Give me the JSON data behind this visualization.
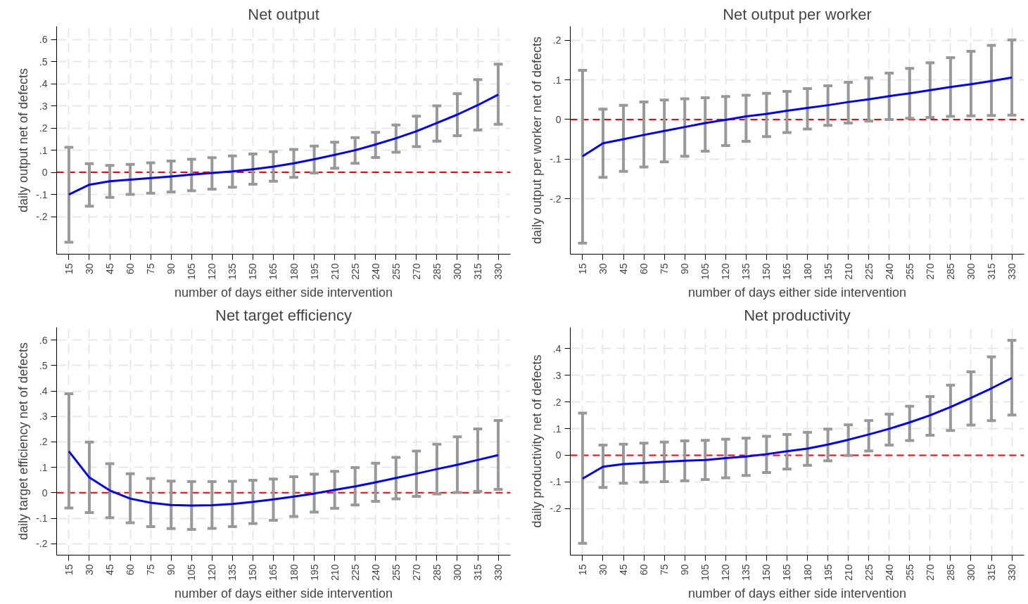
{
  "chart_data": [
    {
      "type": "line",
      "title": "Net output",
      "xlabel": "number of days either side intervention",
      "ylabel": "daily output net of defects",
      "categories": [
        "15",
        "30",
        "45",
        "60",
        "75",
        "90",
        "105",
        "120",
        "135",
        "150",
        "165",
        "180",
        "195",
        "210",
        "225",
        "240",
        "255",
        "270",
        "285",
        "300",
        "315",
        "330"
      ],
      "series": [
        {
          "color": "#0000ff",
          "values": [
            -0.1,
            -0.056,
            -0.04,
            -0.033,
            -0.026,
            -0.019,
            -0.01,
            -0.003,
            0.004,
            0.014,
            0.026,
            0.041,
            0.059,
            0.079,
            0.1,
            0.126,
            0.154,
            0.186,
            0.223,
            0.261,
            0.304,
            0.351
          ],
          "errors": [
            [
              -0.316,
              0.113
            ],
            [
              -0.153,
              0.039
            ],
            [
              -0.113,
              0.031
            ],
            [
              -0.1,
              0.036
            ],
            [
              -0.094,
              0.043
            ],
            [
              -0.089,
              0.051
            ],
            [
              -0.083,
              0.059
            ],
            [
              -0.076,
              0.066
            ],
            [
              -0.067,
              0.074
            ],
            [
              -0.054,
              0.083
            ],
            [
              -0.04,
              0.093
            ],
            [
              -0.023,
              0.104
            ],
            [
              -0.003,
              0.119
            ],
            [
              0.019,
              0.136
            ],
            [
              0.041,
              0.157
            ],
            [
              0.067,
              0.181
            ],
            [
              0.091,
              0.214
            ],
            [
              0.116,
              0.254
            ],
            [
              0.141,
              0.301
            ],
            [
              0.166,
              0.356
            ],
            [
              0.191,
              0.419
            ],
            [
              0.217,
              0.489
            ]
          ]
        }
      ],
      "ylim": [
        -0.37,
        0.66
      ],
      "yticks": [
        {
          "value": -0.2,
          "label": "-.2"
        },
        {
          "value": -0.1,
          "label": "-.1"
        },
        0,
        {
          "value": 0.1,
          "label": ".1"
        },
        {
          "value": 0.2,
          "label": ".2"
        },
        {
          "value": 0.3,
          "label": ".3"
        },
        {
          "value": 0.4,
          "label": ".4"
        },
        {
          "value": 0.5,
          "label": ".5"
        },
        {
          "value": 0.6,
          "label": ".6"
        }
      ],
      "ref_lines": [
        {
          "axis": "y",
          "value": 0,
          "color": "#ff0000",
          "line_style": "dashed"
        }
      ],
      "grid": true,
      "marker": "none",
      "line_style": "solid"
    },
    {
      "type": "line",
      "title": "Net output per worker",
      "xlabel": "number of days either side intervention",
      "ylabel": "daily output per worker net of defects",
      "categories": [
        "15",
        "30",
        "45",
        "60",
        "75",
        "90",
        "105",
        "120",
        "135",
        "150",
        "165",
        "180",
        "195",
        "210",
        "225",
        "240",
        "255",
        "270",
        "285",
        "300",
        "315",
        "330"
      ],
      "series": [
        {
          "color": "#0000ff",
          "values": [
            -0.093,
            -0.06,
            -0.05,
            -0.039,
            -0.029,
            -0.019,
            -0.009,
            -0.001,
            0.008,
            0.014,
            0.022,
            0.029,
            0.036,
            0.044,
            0.051,
            0.059,
            0.066,
            0.074,
            0.082,
            0.089,
            0.097,
            0.106
          ],
          "errors": [
            [
              -0.312,
              0.124
            ],
            [
              -0.146,
              0.026
            ],
            [
              -0.131,
              0.036
            ],
            [
              -0.12,
              0.044
            ],
            [
              -0.107,
              0.049
            ],
            [
              -0.093,
              0.052
            ],
            [
              -0.08,
              0.055
            ],
            [
              -0.066,
              0.058
            ],
            [
              -0.055,
              0.061
            ],
            [
              -0.043,
              0.066
            ],
            [
              -0.033,
              0.071
            ],
            [
              -0.024,
              0.078
            ],
            [
              -0.015,
              0.085
            ],
            [
              -0.009,
              0.094
            ],
            [
              -0.004,
              0.105
            ],
            [
              0.0,
              0.117
            ],
            [
              0.003,
              0.129
            ],
            [
              0.005,
              0.143
            ],
            [
              0.008,
              0.156
            ],
            [
              0.009,
              0.172
            ],
            [
              0.01,
              0.187
            ],
            [
              0.011,
              0.201
            ]
          ]
        }
      ],
      "ylim": [
        -0.34,
        0.235
      ],
      "yticks": [
        {
          "value": -0.2,
          "label": "-.2"
        },
        {
          "value": -0.1,
          "label": "-.1"
        },
        0,
        {
          "value": 0.1,
          "label": ".1"
        },
        {
          "value": 0.2,
          "label": ".2"
        }
      ],
      "ref_lines": [
        {
          "axis": "y",
          "value": 0,
          "color": "#ff0000",
          "line_style": "dashed"
        }
      ],
      "grid": true,
      "marker": "none",
      "line_style": "solid"
    },
    {
      "type": "line",
      "title": "Net target efficiency",
      "xlabel": "number of days either side intervention",
      "ylabel": "daily target efficiency net of defects",
      "categories": [
        "15",
        "30",
        "45",
        "60",
        "75",
        "90",
        "105",
        "120",
        "135",
        "150",
        "165",
        "180",
        "195",
        "210",
        "225",
        "240",
        "255",
        "270",
        "285",
        "300",
        "315",
        "330"
      ],
      "series": [
        {
          "color": "#0000ff",
          "values": [
            0.163,
            0.06,
            0.009,
            -0.023,
            -0.039,
            -0.048,
            -0.05,
            -0.049,
            -0.044,
            -0.036,
            -0.026,
            -0.015,
            -0.003,
            0.011,
            0.025,
            0.041,
            0.058,
            0.075,
            0.093,
            0.11,
            0.129,
            0.148
          ],
          "errors": [
            [
              -0.06,
              0.389
            ],
            [
              -0.078,
              0.199
            ],
            [
              -0.098,
              0.114
            ],
            [
              -0.118,
              0.075
            ],
            [
              -0.133,
              0.056
            ],
            [
              -0.141,
              0.046
            ],
            [
              -0.144,
              0.044
            ],
            [
              -0.14,
              0.044
            ],
            [
              -0.133,
              0.045
            ],
            [
              -0.121,
              0.049
            ],
            [
              -0.108,
              0.054
            ],
            [
              -0.093,
              0.063
            ],
            [
              -0.076,
              0.073
            ],
            [
              -0.061,
              0.084
            ],
            [
              -0.048,
              0.099
            ],
            [
              -0.034,
              0.116
            ],
            [
              -0.024,
              0.139
            ],
            [
              -0.014,
              0.164
            ],
            [
              -0.005,
              0.191
            ],
            [
              0.001,
              0.22
            ],
            [
              0.006,
              0.251
            ],
            [
              0.013,
              0.284
            ]
          ]
        }
      ],
      "ylim": [
        -0.245,
        0.65
      ],
      "yticks": [
        {
          "value": -0.2,
          "label": "-.2"
        },
        {
          "value": -0.1,
          "label": "-.1"
        },
        0,
        {
          "value": 0.1,
          "label": ".1"
        },
        {
          "value": 0.2,
          "label": ".2"
        },
        {
          "value": 0.3,
          "label": ".3"
        },
        {
          "value": 0.4,
          "label": ".4"
        },
        {
          "value": 0.5,
          "label": ".5"
        },
        {
          "value": 0.6,
          "label": ".6"
        }
      ],
      "ref_lines": [
        {
          "axis": "y",
          "value": 0,
          "color": "#ff0000",
          "line_style": "dashed"
        }
      ],
      "grid": true,
      "marker": "none",
      "line_style": "solid"
    },
    {
      "type": "line",
      "title": "Net productivity",
      "xlabel": "number of days either side intervention",
      "ylabel": "daily productivity net of defects",
      "categories": [
        "15",
        "30",
        "45",
        "60",
        "75",
        "90",
        "105",
        "120",
        "135",
        "150",
        "165",
        "180",
        "195",
        "210",
        "225",
        "240",
        "255",
        "270",
        "285",
        "300",
        "315",
        "330"
      ],
      "series": [
        {
          "color": "#0000ff",
          "values": [
            -0.088,
            -0.043,
            -0.033,
            -0.029,
            -0.025,
            -0.021,
            -0.018,
            -0.011,
            -0.005,
            0.004,
            0.015,
            0.025,
            0.04,
            0.058,
            0.078,
            0.099,
            0.123,
            0.15,
            0.181,
            0.215,
            0.251,
            0.29
          ],
          "errors": [
            [
              -0.331,
              0.158
            ],
            [
              -0.121,
              0.038
            ],
            [
              -0.105,
              0.041
            ],
            [
              -0.101,
              0.045
            ],
            [
              -0.099,
              0.049
            ],
            [
              -0.096,
              0.054
            ],
            [
              -0.091,
              0.056
            ],
            [
              -0.085,
              0.06
            ],
            [
              -0.076,
              0.064
            ],
            [
              -0.065,
              0.071
            ],
            [
              -0.052,
              0.078
            ],
            [
              -0.038,
              0.086
            ],
            [
              -0.021,
              0.098
            ],
            [
              -0.001,
              0.114
            ],
            [
              0.016,
              0.13
            ],
            [
              0.038,
              0.154
            ],
            [
              0.055,
              0.184
            ],
            [
              0.075,
              0.22
            ],
            [
              0.093,
              0.263
            ],
            [
              0.113,
              0.313
            ],
            [
              0.13,
              0.369
            ],
            [
              0.151,
              0.431
            ]
          ]
        }
      ],
      "ylim": [
        -0.375,
        0.48
      ],
      "yticks": [
        {
          "value": -0.2,
          "label": "-.2"
        },
        {
          "value": -0.1,
          "label": "-.1"
        },
        0,
        {
          "value": 0.1,
          "label": ".1"
        },
        {
          "value": 0.2,
          "label": ".2"
        },
        {
          "value": 0.3,
          "label": ".3"
        },
        {
          "value": 0.4,
          "label": ".4"
        }
      ],
      "ref_lines": [
        {
          "axis": "y",
          "value": 0,
          "color": "#ff0000",
          "line_style": "dashed"
        }
      ],
      "grid": true,
      "marker": "none",
      "line_style": "solid"
    }
  ]
}
